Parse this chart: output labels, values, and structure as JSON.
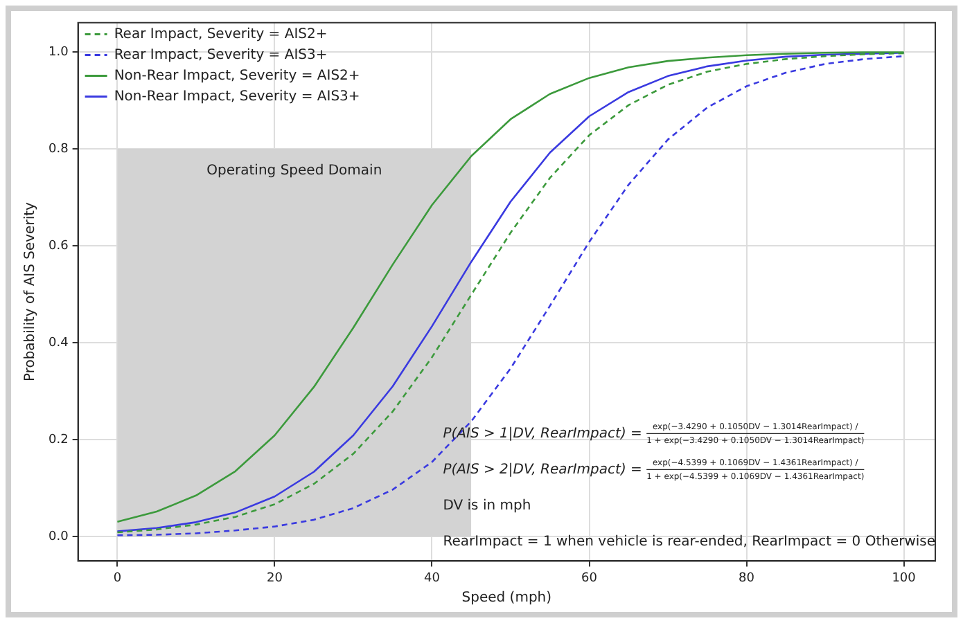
{
  "chart_data": {
    "type": "line",
    "xlabel": "Speed (mph)",
    "ylabel": "Probability of AIS Severity",
    "x": [
      0,
      5,
      10,
      15,
      20,
      25,
      30,
      35,
      40,
      45,
      50,
      55,
      60,
      65,
      70,
      75,
      80,
      85,
      90,
      95,
      100
    ],
    "xlim": [
      -5,
      104
    ],
    "xticks": [
      0,
      20,
      40,
      60,
      80,
      100
    ],
    "ylim": [
      -0.05,
      1.06
    ],
    "yticks": [
      {
        "value": 0,
        "label": "0.0"
      },
      {
        "value": 0.2,
        "label": "0.2"
      },
      {
        "value": 0.4,
        "label": "0.4"
      },
      {
        "value": 0.6,
        "label": "0.6"
      },
      {
        "value": 0.8,
        "label": "0.8"
      },
      {
        "value": 1,
        "label": "1.0"
      }
    ],
    "grid": true,
    "legend": "top left",
    "marker": "none",
    "series": [
      {
        "type": "area",
        "color": "#d3d3d3",
        "x": [
          0,
          45
        ],
        "values": [
          0.8,
          0.8
        ]
      },
      {
        "name": "Rear Impact, Severity = AIS2+",
        "color": "#3c9a3c",
        "line_style": "dashed",
        "values": [
          0.009,
          0.015,
          0.025,
          0.041,
          0.067,
          0.109,
          0.171,
          0.258,
          0.37,
          0.499,
          0.627,
          0.74,
          0.828,
          0.89,
          0.932,
          0.959,
          0.975,
          0.985,
          0.991,
          0.995,
          0.997
        ]
      },
      {
        "name": "Rear Impact, Severity = AIS3+",
        "color": "#3a3ae0",
        "line_style": "dashed",
        "values": [
          0.003,
          0.004,
          0.007,
          0.013,
          0.021,
          0.035,
          0.059,
          0.097,
          0.154,
          0.238,
          0.347,
          0.476,
          0.608,
          0.726,
          0.819,
          0.885,
          0.929,
          0.957,
          0.975,
          0.985,
          0.991
        ]
      },
      {
        "name": "Non-Rear Impact, Severity = AIS2+",
        "color": "#3c9a3c",
        "line_style": "solid",
        "values": [
          0.031,
          0.052,
          0.085,
          0.135,
          0.209,
          0.309,
          0.431,
          0.561,
          0.684,
          0.785,
          0.861,
          0.913,
          0.946,
          0.968,
          0.981,
          0.988,
          0.993,
          0.996,
          0.998,
          0.999,
          0.999
        ]
      },
      {
        "name": "Non-Rear Impact, Severity = AIS3+",
        "color": "#3a3ae0",
        "line_style": "solid",
        "values": [
          0.011,
          0.018,
          0.03,
          0.05,
          0.083,
          0.134,
          0.209,
          0.31,
          0.434,
          0.567,
          0.691,
          0.792,
          0.867,
          0.917,
          0.95,
          0.97,
          0.982,
          0.99,
          0.994,
          0.996,
          0.998
        ]
      }
    ],
    "annotations": [
      {
        "text": "Operating Speed Domain",
        "x": 22.5,
        "y": 0.8
      },
      "P(AIS > 1|DV, RearImpact) = exp(−3.4290 + 0.1050DV − 1.3014RearImpact) / 1 + exp(−3.4290 + 0.1050DV − 1.3014RearImpact)",
      "P(AIS > 2|DV, RearImpact) = exp(−4.5399 + 0.1069DV − 1.4361RearImpact) / 1 + exp(−4.5399 + 0.1069DV − 1.4361RearImpact)",
      "DV is in mph",
      "RearImpact = 1 when vehicle is rear-ended, RearImpact = 0 Otherwise"
    ]
  }
}
